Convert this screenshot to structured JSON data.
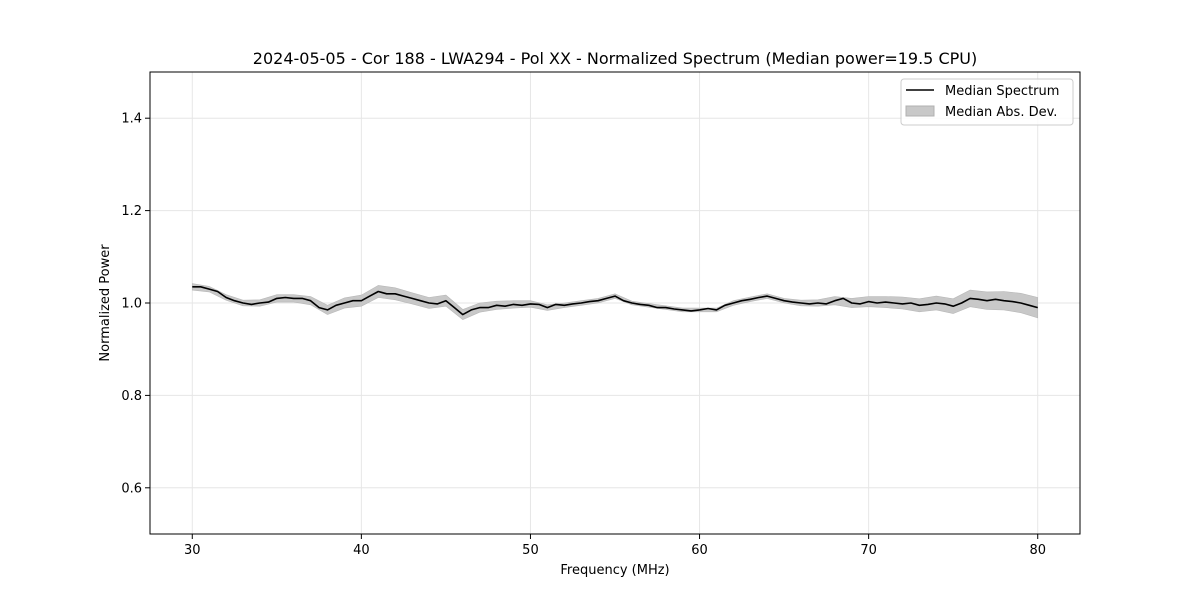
{
  "chart_data": {
    "type": "line",
    "title": "2024-05-05 - Cor 188 - LWA294 - Pol XX - Normalized Spectrum (Median power=19.5 CPU)",
    "xlabel": "Frequency (MHz)",
    "ylabel": "Normalized Power",
    "xlim": [
      27.5,
      82.5
    ],
    "ylim": [
      0.5,
      1.5
    ],
    "xticks": [
      30,
      40,
      50,
      60,
      70,
      80
    ],
    "yticks": [
      0.6,
      0.8,
      1.0,
      1.2,
      1.4
    ],
    "xtick_labels": [
      "30",
      "40",
      "50",
      "60",
      "70",
      "80"
    ],
    "ytick_labels": [
      "0.6",
      "0.8",
      "1.0",
      "1.2",
      "1.4"
    ],
    "grid": true,
    "legend_position": "top-right",
    "series": [
      {
        "name": "Median Spectrum",
        "kind": "line",
        "color": "#000000",
        "x": [
          30.0,
          30.5,
          31.0,
          31.5,
          32.0,
          32.5,
          33.0,
          33.5,
          34.0,
          34.5,
          35.0,
          35.5,
          36.0,
          36.5,
          37.0,
          37.5,
          38.0,
          38.5,
          39.0,
          39.5,
          40.0,
          40.5,
          41.0,
          41.5,
          42.0,
          42.5,
          43.0,
          43.5,
          44.0,
          44.5,
          45.0,
          45.5,
          46.0,
          46.5,
          47.0,
          47.5,
          48.0,
          48.5,
          49.0,
          49.5,
          50.0,
          50.5,
          51.0,
          51.5,
          52.0,
          52.5,
          53.0,
          53.5,
          54.0,
          54.5,
          55.0,
          55.5,
          56.0,
          56.5,
          57.0,
          57.5,
          58.0,
          58.5,
          59.0,
          59.5,
          60.0,
          60.5,
          61.0,
          61.5,
          62.0,
          62.5,
          63.0,
          63.5,
          64.0,
          64.5,
          65.0,
          65.5,
          66.0,
          66.5,
          67.0,
          67.5,
          68.0,
          68.5,
          69.0,
          69.5,
          70.0,
          70.5,
          71.0,
          71.5,
          72.0,
          72.5,
          73.0,
          73.5,
          74.0,
          74.5,
          75.0,
          75.5,
          76.0,
          76.5,
          77.0,
          77.5,
          78.0,
          78.5,
          79.0,
          79.5,
          80.0
        ],
        "values": [
          1.035,
          1.035,
          1.03,
          1.025,
          1.012,
          1.005,
          1.0,
          0.997,
          1.0,
          1.002,
          1.01,
          1.012,
          1.01,
          1.01,
          1.005,
          0.99,
          0.985,
          0.995,
          1.0,
          1.005,
          1.005,
          1.015,
          1.025,
          1.02,
          1.02,
          1.015,
          1.01,
          1.005,
          1.0,
          0.998,
          1.005,
          0.99,
          0.975,
          0.985,
          0.99,
          0.99,
          0.995,
          0.993,
          0.997,
          0.995,
          0.998,
          0.997,
          0.99,
          0.997,
          0.995,
          0.998,
          1.0,
          1.003,
          1.005,
          1.01,
          1.015,
          1.005,
          1.0,
          0.997,
          0.995,
          0.99,
          0.99,
          0.987,
          0.985,
          0.983,
          0.985,
          0.988,
          0.985,
          0.995,
          1.0,
          1.005,
          1.008,
          1.012,
          1.015,
          1.01,
          1.005,
          1.002,
          1.0,
          0.998,
          1.0,
          0.998,
          1.005,
          1.01,
          1.0,
          0.998,
          1.003,
          1.0,
          1.002,
          1.0,
          0.998,
          1.0,
          0.995,
          0.997,
          1.0,
          0.998,
          0.993,
          1.0,
          1.01,
          1.008,
          1.005,
          1.008,
          1.005,
          1.003,
          1.0,
          0.995,
          0.99
        ]
      },
      {
        "name": "Median Abs. Dev.",
        "kind": "band",
        "color": "#c0c0c0",
        "x": [
          30.0,
          31.0,
          32.0,
          33.0,
          34.0,
          35.0,
          36.0,
          37.0,
          38.0,
          39.0,
          40.0,
          41.0,
          42.0,
          43.0,
          44.0,
          45.0,
          46.0,
          47.0,
          48.0,
          49.0,
          50.0,
          51.0,
          52.0,
          53.0,
          54.0,
          55.0,
          56.0,
          57.0,
          58.0,
          59.0,
          60.0,
          61.0,
          62.0,
          63.0,
          64.0,
          65.0,
          66.0,
          67.0,
          68.0,
          69.0,
          70.0,
          71.0,
          72.0,
          73.0,
          74.0,
          75.0,
          76.0,
          77.0,
          78.0,
          79.0,
          80.0
        ],
        "center": [
          1.035,
          1.03,
          1.012,
          1.0,
          1.0,
          1.01,
          1.01,
          1.005,
          0.985,
          1.0,
          1.005,
          1.025,
          1.02,
          1.01,
          1.0,
          1.005,
          0.975,
          0.99,
          0.995,
          0.997,
          0.998,
          0.99,
          0.995,
          1.0,
          1.005,
          1.015,
          1.0,
          0.995,
          0.99,
          0.985,
          0.985,
          0.985,
          1.0,
          1.008,
          1.015,
          1.005,
          1.0,
          1.0,
          1.005,
          1.0,
          1.003,
          1.002,
          1.0,
          0.995,
          1.0,
          0.993,
          1.01,
          1.005,
          1.005,
          1.0,
          0.99
        ],
        "deviation": [
          0.007,
          0.006,
          0.006,
          0.006,
          0.007,
          0.008,
          0.008,
          0.009,
          0.01,
          0.011,
          0.012,
          0.013,
          0.013,
          0.012,
          0.012,
          0.012,
          0.011,
          0.01,
          0.009,
          0.008,
          0.007,
          0.006,
          0.005,
          0.005,
          0.005,
          0.005,
          0.004,
          0.004,
          0.004,
          0.004,
          0.004,
          0.004,
          0.005,
          0.005,
          0.005,
          0.005,
          0.006,
          0.007,
          0.009,
          0.01,
          0.011,
          0.012,
          0.013,
          0.014,
          0.015,
          0.016,
          0.018,
          0.019,
          0.02,
          0.021,
          0.022
        ]
      }
    ]
  }
}
